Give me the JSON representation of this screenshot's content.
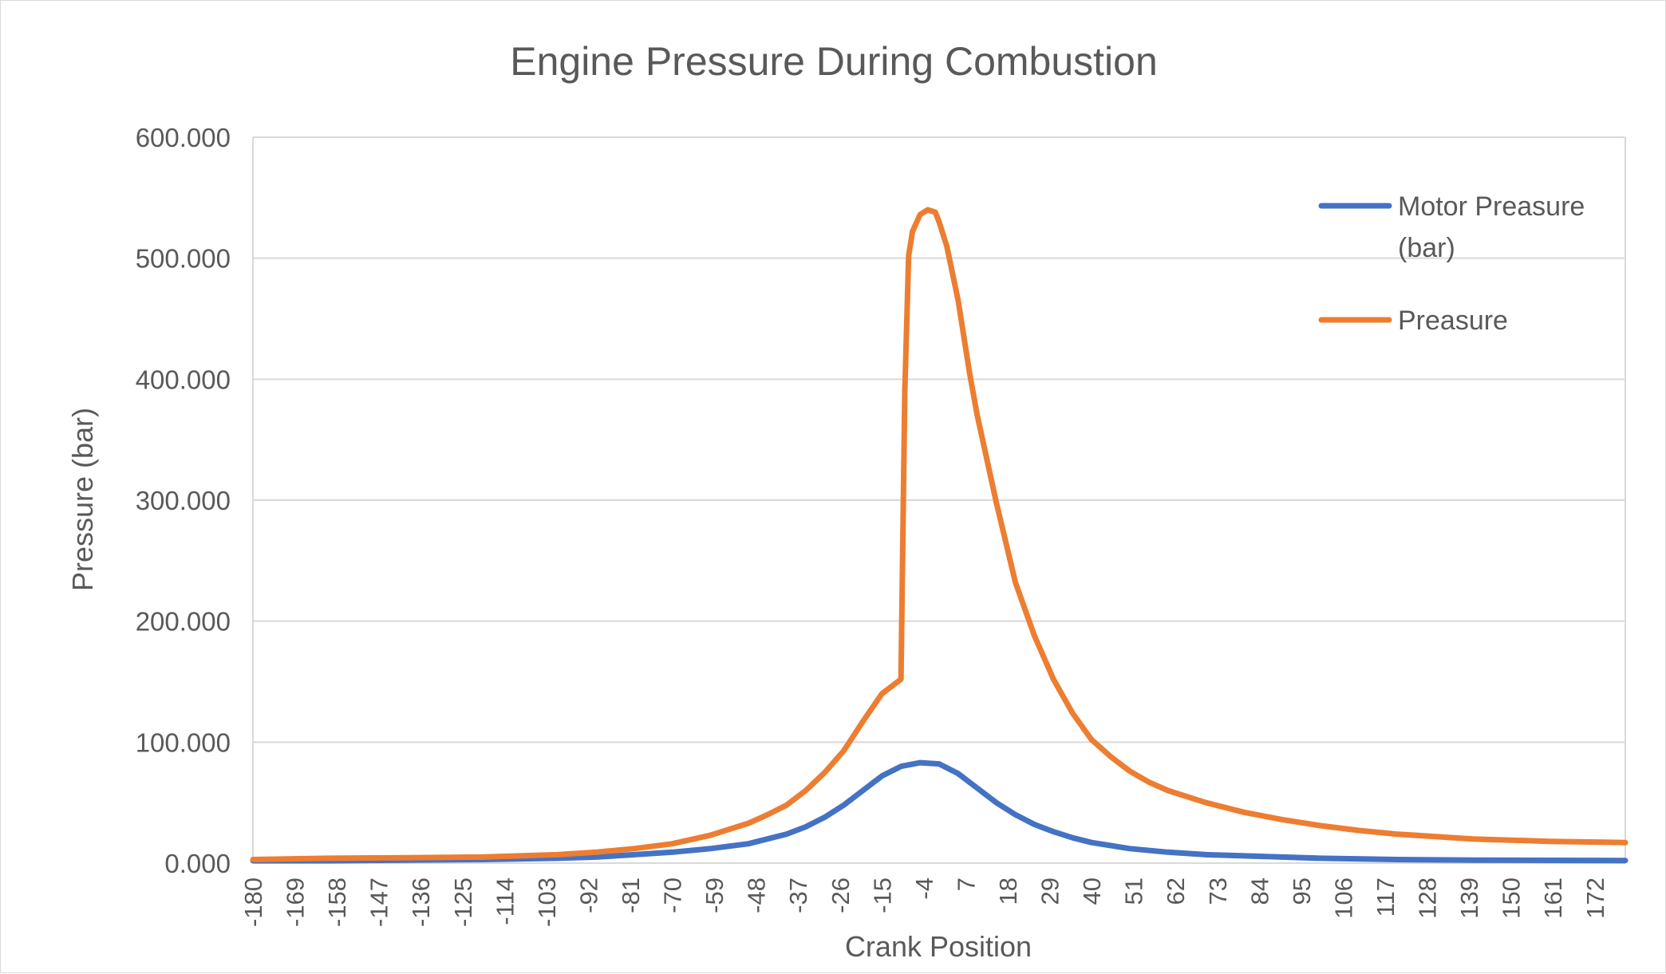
{
  "chart_data": {
    "type": "line",
    "title": "Engine Pressure During Combustion",
    "xlabel": "Crank Position",
    "ylabel": "Pressure (bar)",
    "ylim": [
      0,
      600
    ],
    "y_ticks": [
      "0.000",
      "100.000",
      "200.000",
      "300.000",
      "400.000",
      "500.000",
      "600.000"
    ],
    "y_tick_values": [
      0,
      100,
      200,
      300,
      400,
      500,
      600
    ],
    "x_range": [
      -180,
      180
    ],
    "x_tick_labels": [
      "-180",
      "-169",
      "-158",
      "-147",
      "-136",
      "-125",
      "-114",
      "-103",
      "-92",
      "-81",
      "-70",
      "-59",
      "-48",
      "-37",
      "-26",
      "-15",
      "-4",
      "7",
      "18",
      "29",
      "40",
      "51",
      "62",
      "73",
      "84",
      "95",
      "106",
      "117",
      "128",
      "139",
      "150",
      "161",
      "172"
    ],
    "x_tick_values": [
      -180,
      -169,
      -158,
      -147,
      -136,
      -125,
      -114,
      -103,
      -92,
      -81,
      -70,
      -59,
      -48,
      -37,
      -26,
      -15,
      -4,
      7,
      18,
      29,
      40,
      51,
      62,
      73,
      84,
      95,
      106,
      117,
      128,
      139,
      150,
      161,
      172
    ],
    "grid": true,
    "legend_position": "top-right",
    "series": [
      {
        "name": "Motor Preasure (bar)",
        "legend_lines": [
          "Motor Preasure",
          "(bar)"
        ],
        "color": "#4472c4",
        "x": [
          -180,
          -160,
          -140,
          -120,
          -100,
          -90,
          -80,
          -70,
          -60,
          -50,
          -40,
          -35,
          -30,
          -25,
          -20,
          -15,
          -10,
          -5,
          0,
          5,
          10,
          15,
          20,
          25,
          30,
          35,
          40,
          50,
          60,
          70,
          80,
          90,
          100,
          120,
          140,
          160,
          180
        ],
        "values": [
          2,
          2,
          2.5,
          3,
          4,
          5,
          7,
          9,
          12,
          16,
          24,
          30,
          38,
          48,
          60,
          72,
          80,
          83,
          82,
          74,
          62,
          50,
          40,
          32,
          26,
          21,
          17,
          12,
          9,
          7,
          6,
          5,
          4,
          3,
          2.5,
          2.3,
          2.2
        ]
      },
      {
        "name": "Preasure",
        "legend_lines": [
          "Preasure"
        ],
        "color": "#ed7d31",
        "x": [
          -180,
          -160,
          -140,
          -120,
          -110,
          -100,
          -90,
          -80,
          -70,
          -60,
          -50,
          -45,
          -40,
          -35,
          -30,
          -25,
          -20,
          -15,
          -10,
          -9,
          -8,
          -7,
          -5,
          -3,
          -1,
          0,
          2,
          5,
          8,
          10,
          15,
          20,
          25,
          30,
          35,
          40,
          45,
          50,
          55,
          60,
          70,
          80,
          90,
          100,
          110,
          120,
          140,
          160,
          180
        ],
        "values": [
          3,
          4,
          4.5,
          5,
          6,
          7,
          9,
          12,
          16,
          23,
          33,
          40,
          48,
          60,
          75,
          93,
          117,
          140,
          152,
          390,
          502,
          522,
          536,
          540,
          538,
          530,
          510,
          465,
          405,
          370,
          298,
          232,
          188,
          152,
          124,
          102,
          88,
          76,
          67,
          60,
          50,
          42,
          36,
          31,
          27,
          24,
          20,
          18,
          17
        ]
      }
    ]
  }
}
